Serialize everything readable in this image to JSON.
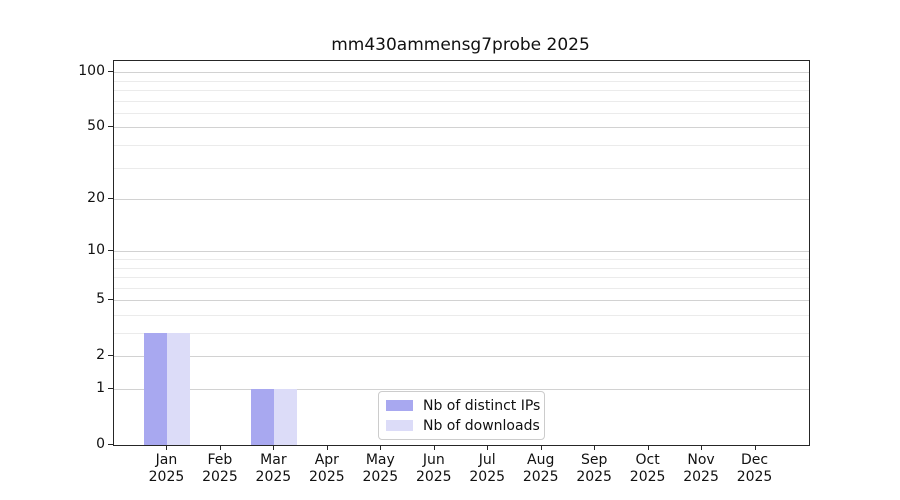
{
  "title": "mm430ammensg7probe 2025",
  "chart_data": {
    "type": "bar",
    "title": "mm430ammensg7probe 2025",
    "categories": [
      {
        "month": "Jan",
        "year": "2025"
      },
      {
        "month": "Feb",
        "year": "2025"
      },
      {
        "month": "Mar",
        "year": "2025"
      },
      {
        "month": "Apr",
        "year": "2025"
      },
      {
        "month": "May",
        "year": "2025"
      },
      {
        "month": "Jun",
        "year": "2025"
      },
      {
        "month": "Jul",
        "year": "2025"
      },
      {
        "month": "Aug",
        "year": "2025"
      },
      {
        "month": "Sep",
        "year": "2025"
      },
      {
        "month": "Oct",
        "year": "2025"
      },
      {
        "month": "Nov",
        "year": "2025"
      },
      {
        "month": "Dec",
        "year": "2025"
      }
    ],
    "series": [
      {
        "name": "Nb of distinct IPs",
        "color": "#a8a8f0",
        "values": [
          3,
          0,
          1,
          0,
          0,
          0,
          0,
          0,
          0,
          0,
          0,
          0
        ]
      },
      {
        "name": "Nb of downloads",
        "color": "#dcdcf8",
        "values": [
          3,
          0,
          1,
          0,
          0,
          0,
          0,
          0,
          0,
          0,
          0,
          0
        ]
      }
    ],
    "scale": "log10(value+1)",
    "ylim": [
      0,
      115
    ],
    "yticks_major": [
      0,
      1,
      2,
      5,
      10,
      20,
      50,
      100
    ],
    "yticks_minor": [
      3,
      4,
      6,
      7,
      8,
      9,
      30,
      40,
      60,
      70,
      80,
      90
    ],
    "grid": "both",
    "legend_position": "lower-center"
  }
}
